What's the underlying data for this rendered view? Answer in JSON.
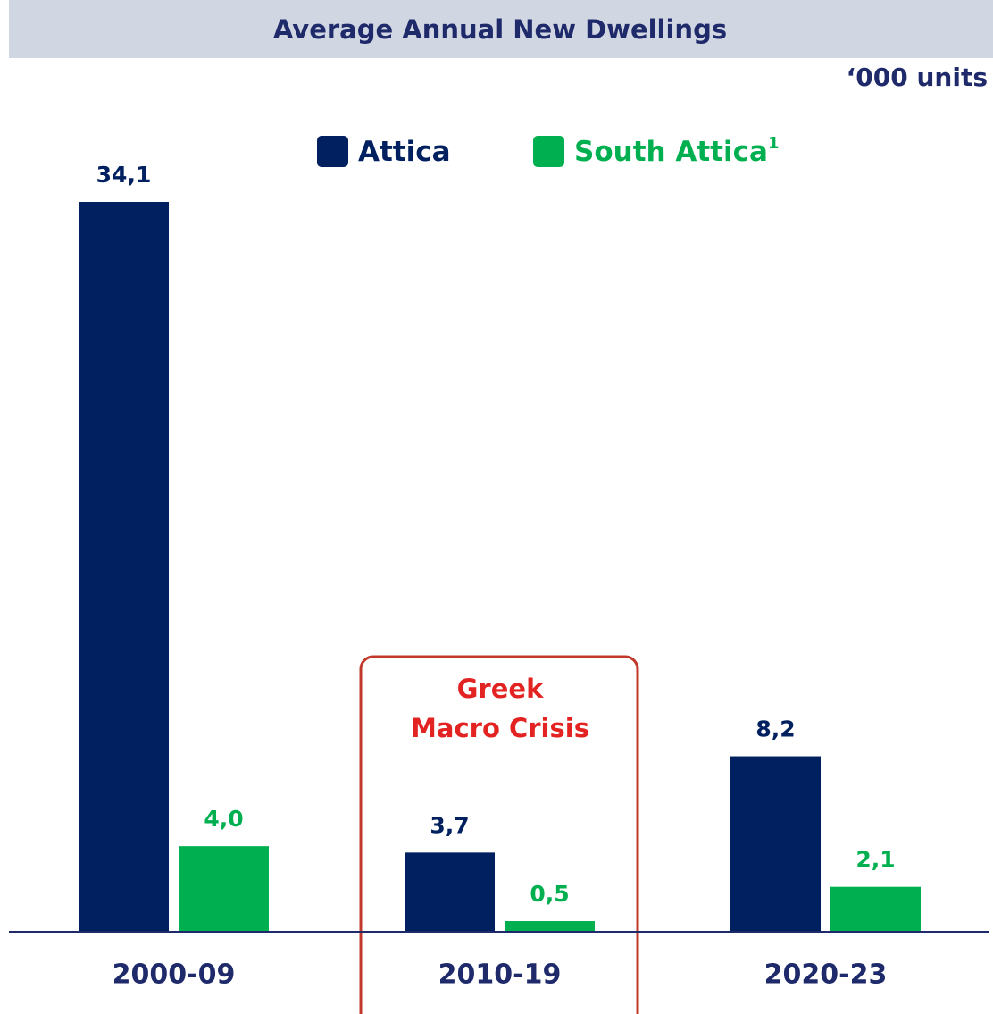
{
  "chart_data": {
    "type": "bar",
    "title": "Average Annual New Dwellings",
    "unit_label": "‘000 units",
    "categories": [
      "2000-09",
      "2010-19",
      "2020-23"
    ],
    "series": [
      {
        "name": "Attica",
        "color": "#002060",
        "values": [
          34.1,
          3.7,
          8.2
        ],
        "value_labels": [
          "34,1",
          "3,7",
          "8,2"
        ]
      },
      {
        "name": "South Attica",
        "footnote_marker": "1",
        "color": "#00b050",
        "values": [
          4.0,
          0.5,
          2.1
        ],
        "value_labels": [
          "4,0",
          "0,5",
          "2,1"
        ]
      }
    ],
    "annotation_lines": [
      "Greek",
      "Macro Crisis"
    ],
    "annotation_color": "#e32322"
  }
}
